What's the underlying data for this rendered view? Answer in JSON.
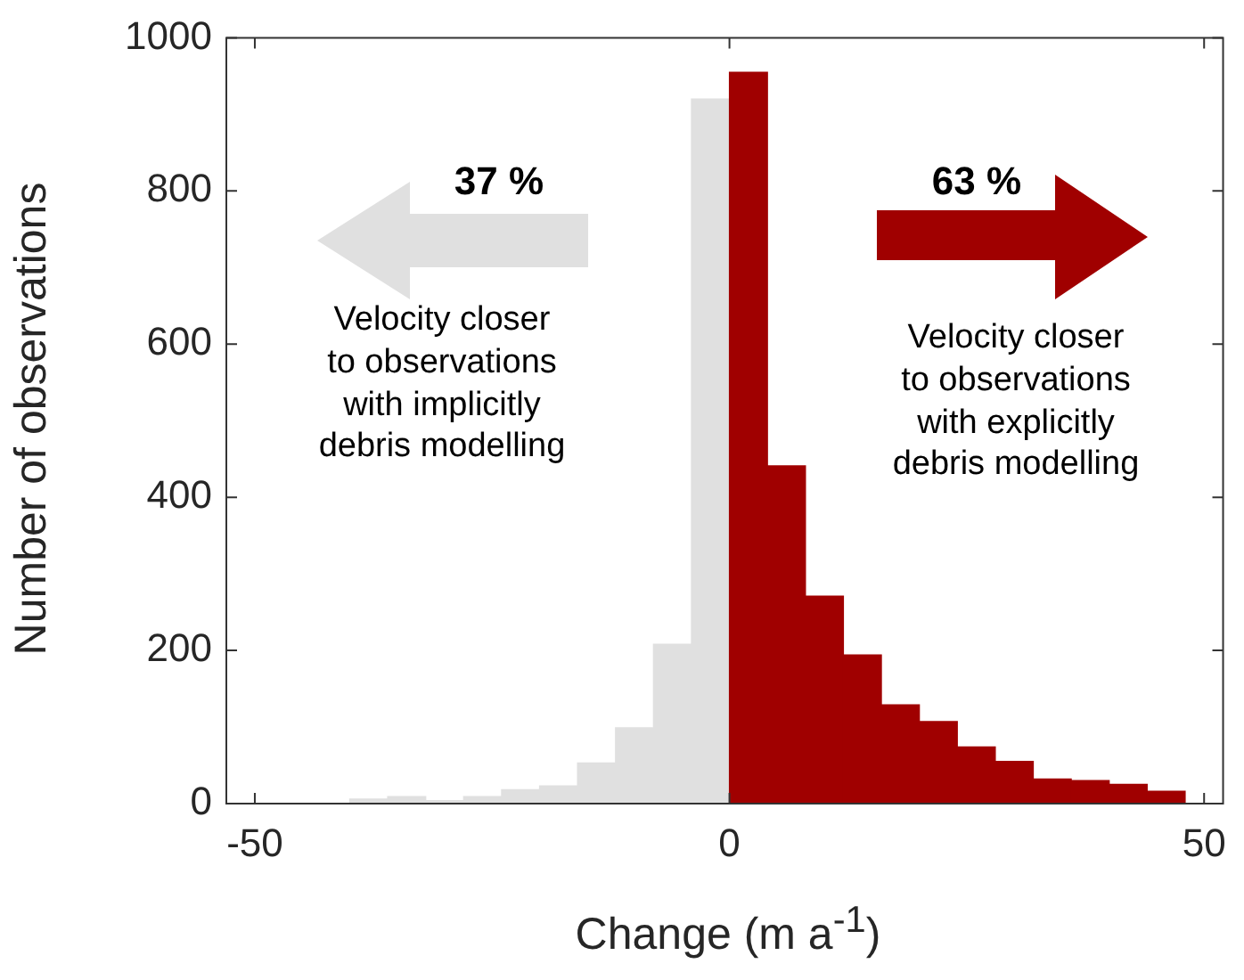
{
  "chart_data": {
    "type": "histogram",
    "xlabel": "Change (m a$^{-1}$)",
    "ylabel": "Number of observations",
    "bins": [
      -40,
      -36,
      -32,
      -28,
      -24,
      -20,
      -16,
      -12,
      -8,
      -4,
      0,
      4,
      8,
      12,
      16,
      20,
      24,
      28,
      32,
      36,
      40,
      44,
      48
    ],
    "values": [
      6,
      9,
      4,
      9,
      18,
      23,
      53,
      99,
      208,
      920,
      955,
      441,
      271,
      194,
      129,
      107,
      74,
      55,
      32,
      30,
      25,
      16
    ],
    "colors": [
      "#e0e0e0",
      "#e0e0e0",
      "#e0e0e0",
      "#e0e0e0",
      "#e0e0e0",
      "#e0e0e0",
      "#e0e0e0",
      "#e0e0e0",
      "#e0e0e0",
      "#e0e0e0",
      "#a00000",
      "#a00000",
      "#a00000",
      "#a00000",
      "#a00000",
      "#a00000",
      "#a00000",
      "#a00000",
      "#a00000",
      "#a00000",
      "#a00000",
      "#a00000"
    ],
    "xlim": [
      -53,
      52
    ],
    "xticks": [
      -50,
      0,
      50
    ],
    "ylim": [
      0,
      1000
    ],
    "yticks": [
      0,
      200,
      400,
      600,
      800,
      1000
    ],
    "grid": false,
    "legend": false,
    "annotations": [
      "37 %",
      "Velocity closer\nto observations\nwith implicitly\ndebris modelling",
      "63 %",
      "Velocity closer\nto observations\nwith explicitly\ndebris modelling"
    ]
  }
}
